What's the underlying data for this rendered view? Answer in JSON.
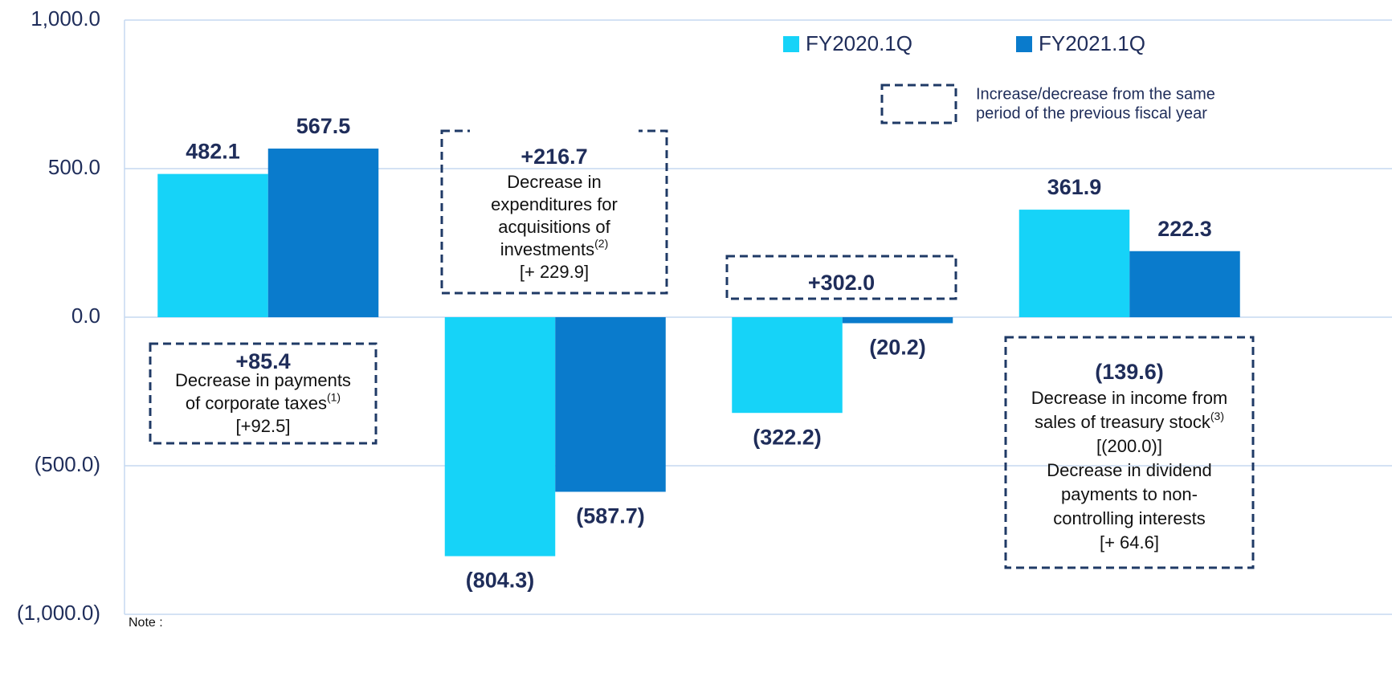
{
  "chart_data": {
    "type": "bar",
    "categories": [
      null,
      null,
      null,
      null
    ],
    "series": [
      {
        "name": "FY2020.1Q",
        "color": "#16d3f8",
        "values": [
          482.1,
          -804.3,
          -322.2,
          361.9
        ],
        "value_labels": [
          "482.1",
          "(804.3)",
          "(322.2)",
          "361.9"
        ]
      },
      {
        "name": "FY2021.1Q",
        "color": "#0a7bcc",
        "values": [
          567.5,
          -587.7,
          -20.2,
          222.3
        ],
        "value_labels": [
          "567.5",
          "(587.7)",
          "(20.2)",
          "222.3"
        ]
      }
    ],
    "ylim": [
      -1000,
      1000
    ],
    "yticks": [
      {
        "value": -1000,
        "label": "(1,000.0)"
      },
      {
        "value": -500,
        "label": "(500.0)"
      },
      {
        "value": 0,
        "label": "0.0"
      },
      {
        "value": 500,
        "label": "500.0"
      },
      {
        "value": 1000,
        "label": "1,000.0"
      }
    ],
    "grid": true,
    "legend": "top-right",
    "legend_box_text": [
      "Increase/decrease from the same",
      "period of the previous fiscal year"
    ],
    "annotations": [
      {
        "headline": "+85.4",
        "lines": [
          "Decrease in payments",
          {
            "text": "of corporate taxes",
            "sup": "(1)"
          },
          "[+92.5]"
        ]
      },
      {
        "headline": "+216.7",
        "lines": [
          "Decrease in",
          "expenditures for",
          "acquisitions of",
          {
            "text": "investments",
            "sup": "(2)"
          },
          "[+ 229.9]"
        ]
      },
      {
        "headline": "+302.0",
        "lines": []
      },
      {
        "headline": "(139.6)",
        "lines": [
          "Decrease in income from",
          {
            "text": "sales of treasury stock",
            "sup": "(3)"
          },
          "[(200.0)]",
          "Decrease in dividend",
          "payments to non-",
          "controlling interests",
          "[+ 64.6]"
        ]
      }
    ],
    "note": "Note :"
  }
}
